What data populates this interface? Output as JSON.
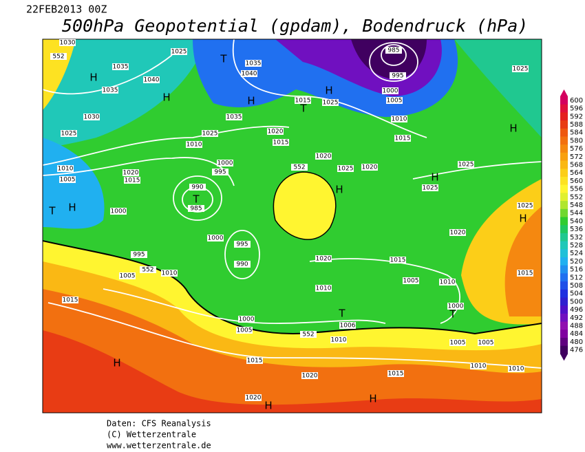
{
  "header": {
    "date": "22FEB2013 00Z",
    "title": "500hPa Geopotential (gpdam), Bodendruck (hPa)"
  },
  "credits": [
    "Daten: CFS Reanalysis",
    "(C) Wetterzentrale",
    "www.wetterzentrale.de"
  ],
  "legend": {
    "values": [
      600,
      596,
      592,
      588,
      584,
      580,
      576,
      572,
      568,
      564,
      560,
      556,
      552,
      548,
      544,
      540,
      536,
      532,
      528,
      524,
      520,
      516,
      512,
      508,
      504,
      500,
      496,
      492,
      488,
      484,
      480,
      476
    ],
    "colors": [
      "#d4005f",
      "#e0103c",
      "#e42020",
      "#e83c14",
      "#ee5810",
      "#f27010",
      "#f58810",
      "#f8a010",
      "#fab814",
      "#fcce18",
      "#fde222",
      "#fff530",
      "#e0f030",
      "#b0e630",
      "#70d830",
      "#30cc30",
      "#20c860",
      "#20c890",
      "#20c8b8",
      "#20c0d8",
      "#20b0f0",
      "#2090f0",
      "#2070f0",
      "#2050e8",
      "#2030e0",
      "#3020d0",
      "#5010c8",
      "#7010c0",
      "#9010b0",
      "#8000a0",
      "#600080",
      "#400060"
    ]
  },
  "map_labels": [
    "1030",
    "1025",
    "1035",
    "1040",
    "1035",
    "1030",
    "1025",
    "1010",
    "1005",
    "1020",
    "1015",
    "1000",
    "995",
    "1005",
    "552",
    "1010",
    "1015",
    "990",
    "985",
    "1000",
    "995",
    "990",
    "1000",
    "1005",
    "1015",
    "1020",
    "1020",
    "1010",
    "552",
    "1006",
    "1010",
    "1020",
    "1015",
    "1005",
    "1010",
    "1000",
    "1005",
    "1005",
    "1010",
    "1010",
    "1015",
    "1020",
    "1025",
    "1025",
    "1025",
    "1020",
    "1025",
    "1020",
    "552",
    "1010",
    "1000",
    "995",
    "1025",
    "1020",
    "1015",
    "1035",
    "1040",
    "1035",
    "1015",
    "1025",
    "1010",
    "1015",
    "1000",
    "1005",
    "995",
    "985",
    "1025",
    "1015",
    "552"
  ],
  "pressure_centers": [
    "H",
    "H",
    "T",
    "H",
    "H",
    "T",
    "H",
    "H",
    "H",
    "H",
    "T",
    "H",
    "T",
    "T",
    "T",
    "H",
    "H",
    "H"
  ]
}
